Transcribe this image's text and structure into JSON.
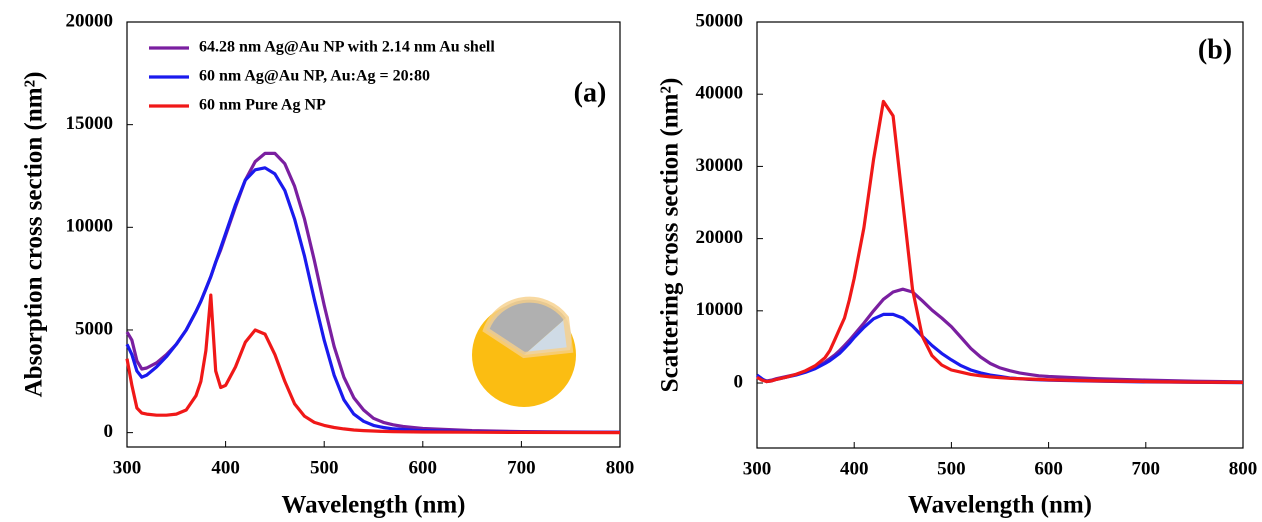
{
  "chart_data": [
    {
      "type": "line",
      "annotation": "(a)",
      "x_label": "Wavelength (nm)",
      "y_label": "Absorption cross section (nm²)",
      "xlim": [
        300,
        800
      ],
      "xticks": [
        300,
        400,
        500,
        600,
        700,
        800
      ],
      "ylim": [
        -700,
        20000
      ],
      "yticks": [
        0,
        5000,
        10000,
        15000,
        20000
      ],
      "legend": "upper left",
      "x": [
        300,
        305,
        310,
        315,
        320,
        330,
        340,
        350,
        360,
        370,
        375,
        380,
        385,
        390,
        395,
        400,
        410,
        420,
        430,
        440,
        450,
        460,
        470,
        480,
        490,
        500,
        510,
        520,
        530,
        540,
        550,
        560,
        570,
        580,
        590,
        600,
        650,
        700,
        750,
        800
      ],
      "series": [
        {
          "name": "64.28 nm Ag@Au NP with 2.14 nm Au shell",
          "color": "#7a1fa0",
          "values": [
            4900,
            4500,
            3500,
            3100,
            3150,
            3400,
            3800,
            4300,
            5000,
            5900,
            6400,
            7000,
            7600,
            8300,
            8900,
            9600,
            11000,
            12300,
            13200,
            13600,
            13600,
            13100,
            12000,
            10400,
            8400,
            6200,
            4200,
            2700,
            1700,
            1100,
            700,
            500,
            380,
            300,
            250,
            200,
            100,
            50,
            30,
            20
          ]
        },
        {
          "name": "60 nm Ag@Au NP, Au:Ag = 20:80",
          "color": "#1a1aee",
          "values": [
            4300,
            3800,
            3000,
            2700,
            2800,
            3200,
            3700,
            4300,
            5000,
            5900,
            6400,
            7000,
            7600,
            8300,
            9000,
            9700,
            11100,
            12300,
            12800,
            12900,
            12600,
            11800,
            10400,
            8600,
            6500,
            4500,
            2800,
            1600,
            900,
            550,
            350,
            250,
            180,
            150,
            120,
            100,
            50,
            30,
            20,
            10
          ]
        },
        {
          "name": "60 nm Pure Ag NP",
          "color": "#f01818",
          "values": [
            3600,
            2300,
            1200,
            950,
            900,
            850,
            850,
            900,
            1100,
            1800,
            2500,
            4000,
            6700,
            3000,
            2200,
            2300,
            3200,
            4400,
            5000,
            4800,
            3800,
            2500,
            1400,
            800,
            500,
            350,
            250,
            180,
            130,
            100,
            80,
            60,
            50,
            40,
            35,
            30,
            20,
            10,
            5,
            0
          ]
        }
      ]
    },
    {
      "type": "line",
      "annotation": "(b)",
      "x_label": "Wavelength (nm)",
      "y_label": "Scattering cross section (nm²)",
      "xlim": [
        300,
        800
      ],
      "xticks": [
        300,
        400,
        500,
        600,
        700,
        800
      ],
      "ylim": [
        -9000,
        50000
      ],
      "yticks": [
        0,
        10000,
        20000,
        30000,
        40000,
        50000
      ],
      "x": [
        300,
        305,
        310,
        315,
        320,
        330,
        340,
        350,
        360,
        370,
        375,
        380,
        385,
        390,
        395,
        400,
        410,
        420,
        430,
        440,
        450,
        460,
        470,
        480,
        490,
        500,
        510,
        520,
        530,
        540,
        550,
        560,
        570,
        580,
        590,
        600,
        650,
        700,
        750,
        800
      ],
      "series": [
        {
          "color": "#7a1fa0",
          "values": [
            900,
            500,
            300,
            400,
            600,
            900,
            1200,
            1600,
            2100,
            2900,
            3400,
            3900,
            4500,
            5200,
            5900,
            6700,
            8300,
            10000,
            11600,
            12600,
            13000,
            12600,
            11400,
            10100,
            9000,
            7800,
            6300,
            4800,
            3600,
            2700,
            2100,
            1700,
            1400,
            1200,
            1000,
            900,
            600,
            400,
            250,
            150
          ]
        },
        {
          "color": "#1a1aee",
          "values": [
            1100,
            600,
            200,
            300,
            500,
            800,
            1100,
            1500,
            2000,
            2700,
            3100,
            3600,
            4100,
            4800,
            5500,
            6300,
            7700,
            8900,
            9500,
            9500,
            9000,
            7900,
            6500,
            5200,
            4100,
            3200,
            2400,
            1800,
            1400,
            1100,
            900,
            700,
            600,
            500,
            450,
            400,
            250,
            150,
            100,
            60
          ]
        },
        {
          "color": "#f01818",
          "values": [
            800,
            400,
            200,
            300,
            500,
            800,
            1200,
            1700,
            2400,
            3500,
            4500,
            6000,
            7500,
            9000,
            11500,
            14500,
            21500,
            31000,
            39000,
            37000,
            25000,
            13000,
            6500,
            3800,
            2500,
            1800,
            1500,
            1200,
            1000,
            850,
            750,
            650,
            600,
            550,
            500,
            450,
            300,
            200,
            120,
            80
          ]
        }
      ]
    }
  ]
}
